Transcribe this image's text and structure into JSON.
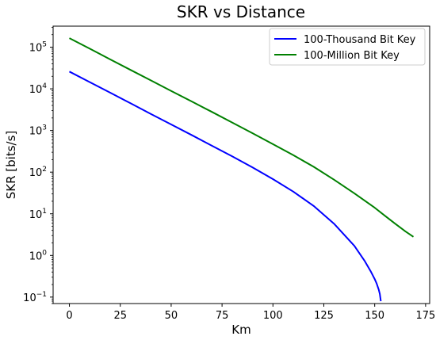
{
  "chart_data": {
    "type": "line",
    "title": "SKR vs Distance",
    "xlabel": "Km",
    "ylabel": "SKR [bits/s]",
    "xlim": [
      -8,
      177
    ],
    "ylim": [
      0.07,
      320000
    ],
    "yscale": "log",
    "grid": false,
    "legend_position": "top-right",
    "x_ticks": [
      0,
      25,
      50,
      75,
      100,
      125,
      150,
      175
    ],
    "y_ticks": [
      {
        "value": 0.1,
        "base": "10",
        "exp": "−1"
      },
      {
        "value": 1,
        "base": "10",
        "exp": "0"
      },
      {
        "value": 10,
        "base": "10",
        "exp": "1"
      },
      {
        "value": 100,
        "base": "10",
        "exp": "2"
      },
      {
        "value": 1000,
        "base": "10",
        "exp": "3"
      },
      {
        "value": 10000,
        "base": "10",
        "exp": "4"
      },
      {
        "value": 100000,
        "base": "10",
        "exp": "5"
      }
    ],
    "series": [
      {
        "name": "100-Thousand Bit Key",
        "color": "#0000ff",
        "x": [
          0,
          10,
          20,
          30,
          40,
          50,
          60,
          70,
          80,
          90,
          100,
          110,
          120,
          130,
          140,
          145,
          148,
          150,
          151,
          152,
          152.5,
          153
        ],
        "y": [
          26000,
          14500,
          8100,
          4500,
          2500,
          1400,
          780,
          430,
          240,
          130,
          68,
          34,
          15.5,
          5.8,
          1.7,
          0.75,
          0.42,
          0.27,
          0.21,
          0.15,
          0.12,
          0.08
        ]
      },
      {
        "name": "100-Million Bit Key",
        "color": "#008000",
        "x": [
          0,
          10,
          20,
          30,
          40,
          50,
          60,
          70,
          80,
          90,
          100,
          110,
          120,
          130,
          140,
          150,
          155,
          160,
          165,
          169
        ],
        "y": [
          165000,
          92000,
          51000,
          28500,
          16000,
          8900,
          5000,
          2800,
          1550,
          860,
          470,
          255,
          135,
          66,
          31,
          14,
          9,
          5.8,
          3.8,
          2.8
        ]
      }
    ]
  }
}
